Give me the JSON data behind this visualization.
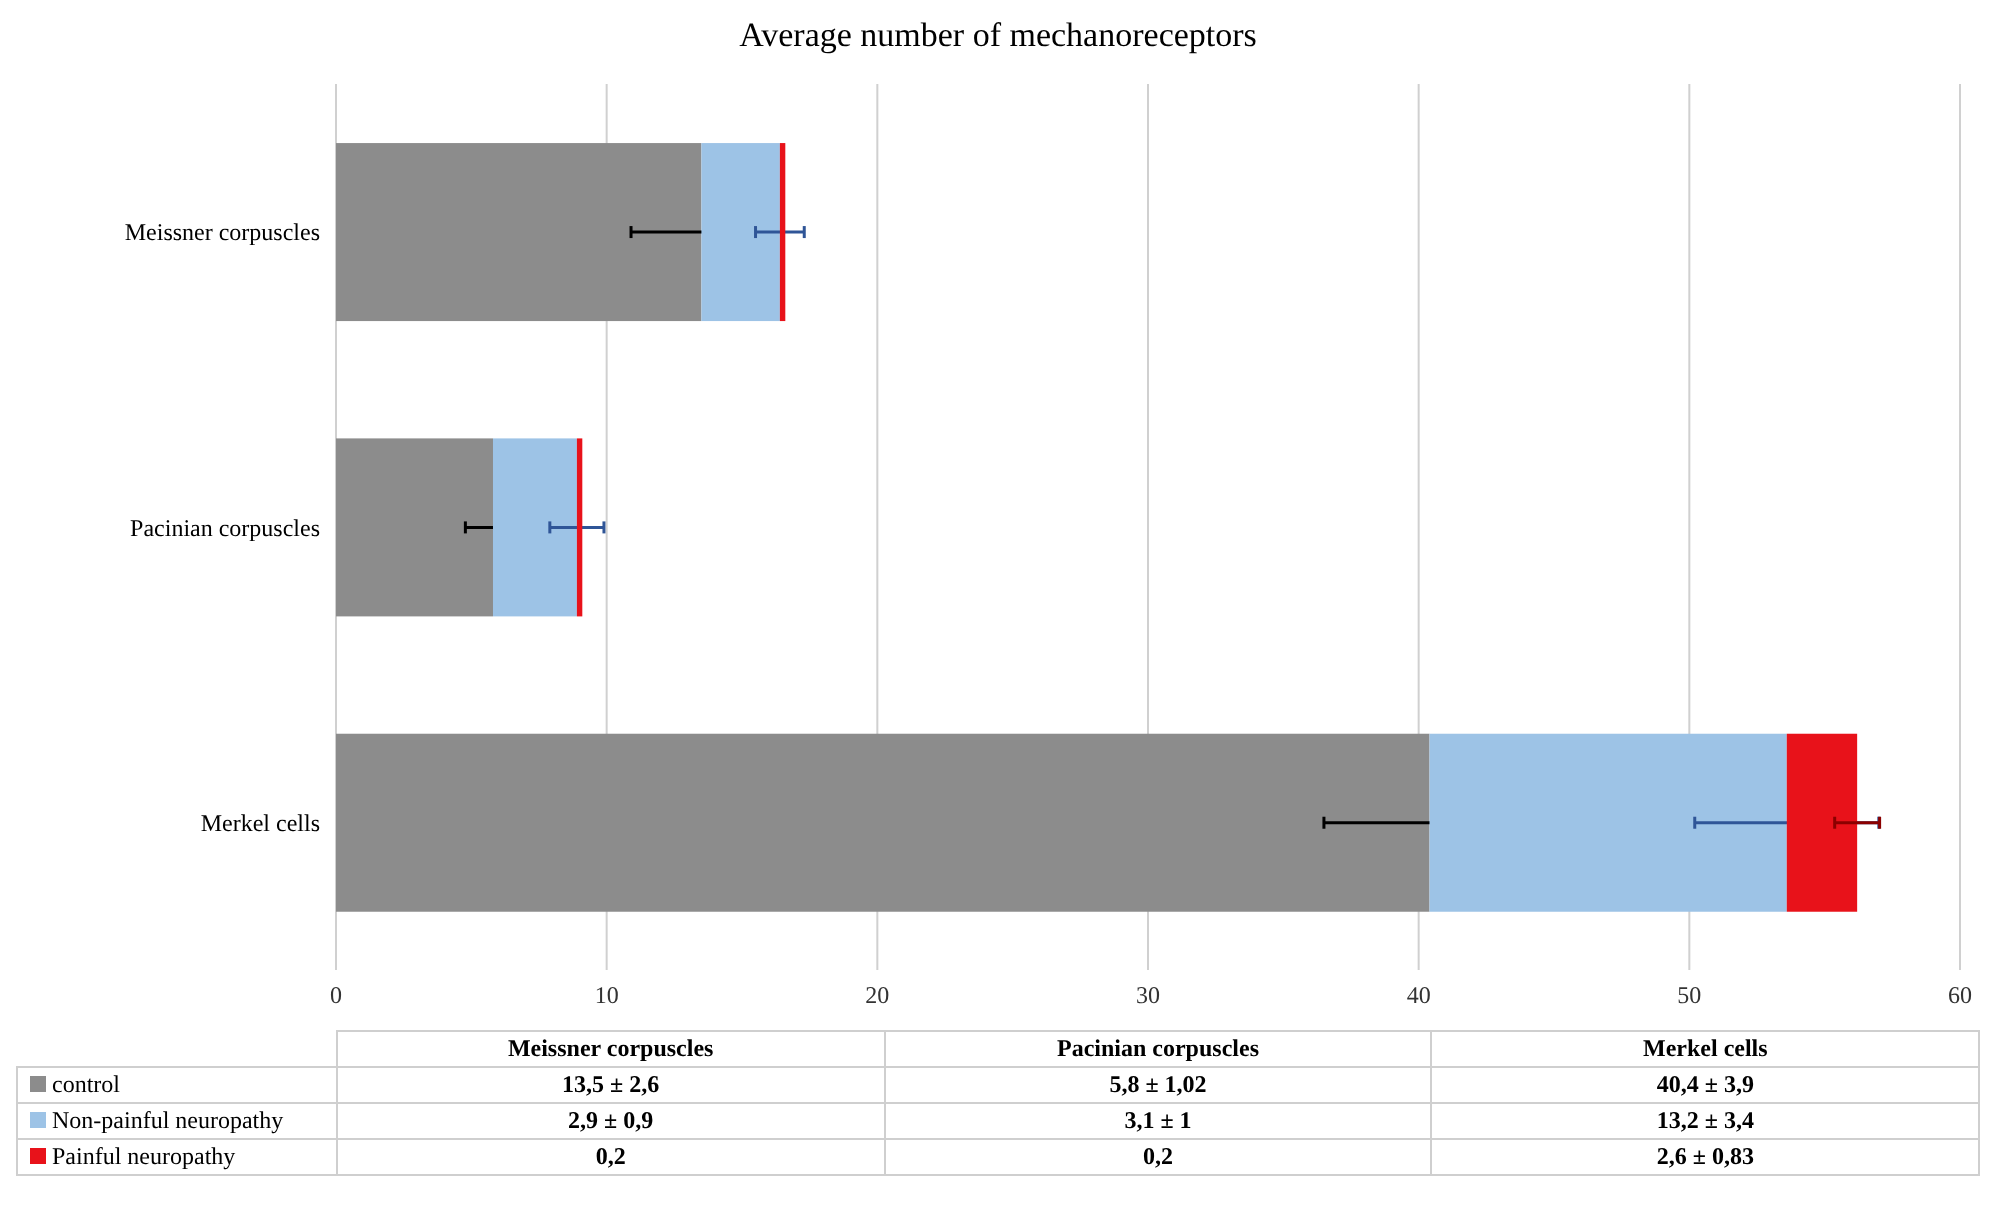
{
  "chart_data": {
    "type": "bar",
    "orientation": "horizontal",
    "stacked": true,
    "title": "Average number of mechanoreceptors",
    "categories": [
      "Meissner corpuscles",
      "Pacinian corpuscles",
      "Merkel cells"
    ],
    "series": [
      {
        "name": "control",
        "color": "#8c8c8c",
        "values": [
          13.5,
          5.8,
          40.4
        ],
        "errors": [
          2.6,
          1.02,
          3.9
        ]
      },
      {
        "name": "Non-painful neuropathy",
        "color": "#9dc3e6",
        "values": [
          2.9,
          3.1,
          13.2
        ],
        "errors": [
          0.9,
          1,
          3.4
        ]
      },
      {
        "name": "Painful neuropathy",
        "color": "#e8121a",
        "values": [
          0.2,
          0.2,
          2.6
        ],
        "errors": [
          null,
          null,
          0.83
        ]
      }
    ],
    "annotations": [
      "13,5 ± 2,6",
      "5,8 ± 1,02",
      "40,4 ± 3,9",
      "2,9 ± 0,9",
      "3,1 ± 1",
      "13,2 ± 3,4",
      "0,2",
      "0,2",
      "2,6 ± 0,83"
    ],
    "xlim": [
      0,
      60
    ],
    "xticks": [
      0,
      10,
      20,
      30,
      40,
      50,
      60
    ],
    "grid": "x",
    "legend": "bottom"
  }
}
